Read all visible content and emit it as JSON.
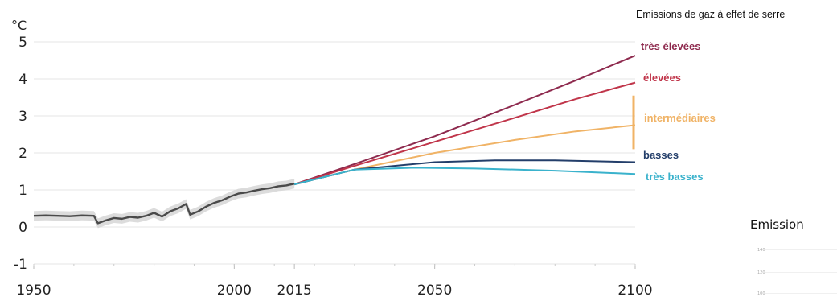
{
  "chart_data": [
    {
      "type": "line",
      "unit_label": "°C",
      "x_ticks": [
        1950,
        2000,
        2015,
        2050,
        2100
      ],
      "y_ticks": [
        5,
        4,
        3,
        2,
        1,
        0,
        -1
      ],
      "xlim": [
        1950,
        2100
      ],
      "ylim": [
        -1,
        5
      ],
      "grid": true,
      "legend_title": "Emissions de gaz à effet de serre",
      "legend_position": "right",
      "observed": {
        "x": [
          1950,
          1953,
          1956,
          1959,
          1962,
          1965,
          1966,
          1968,
          1970,
          1972,
          1974,
          1976,
          1978,
          1980,
          1982,
          1984,
          1986,
          1988,
          1989,
          1991,
          1993,
          1995,
          1997,
          1999,
          2001,
          2003,
          2005,
          2007,
          2009,
          2011,
          2013,
          2015
        ],
        "y": [
          0.3,
          0.31,
          0.3,
          0.29,
          0.31,
          0.3,
          0.1,
          0.18,
          0.24,
          0.22,
          0.27,
          0.25,
          0.3,
          0.38,
          0.28,
          0.42,
          0.5,
          0.62,
          0.33,
          0.42,
          0.55,
          0.65,
          0.72,
          0.82,
          0.9,
          0.93,
          0.98,
          1.02,
          1.05,
          1.1,
          1.12,
          1.17
        ],
        "color": "#4a4a4a",
        "band_color": "#d6d6d6"
      },
      "series": [
        {
          "name": "très élevées",
          "color": "#8e2a4e",
          "x": [
            2015,
            2030,
            2050,
            2070,
            2085,
            2100
          ],
          "y": [
            1.15,
            1.7,
            2.45,
            3.3,
            3.95,
            4.63
          ]
        },
        {
          "name": "élevées",
          "color": "#c0354a",
          "x": [
            2015,
            2030,
            2050,
            2070,
            2085,
            2100
          ],
          "y": [
            1.15,
            1.65,
            2.3,
            2.95,
            3.45,
            3.9
          ]
        },
        {
          "name": "intermédiaires",
          "color": "#f0b366",
          "x": [
            2015,
            2030,
            2050,
            2070,
            2085,
            2100
          ],
          "y": [
            1.15,
            1.55,
            2.0,
            2.35,
            2.58,
            2.75
          ]
        },
        {
          "name": "basses",
          "color": "#233e6a",
          "x": [
            2015,
            2030,
            2050,
            2065,
            2080,
            2100
          ],
          "y": [
            1.15,
            1.55,
            1.75,
            1.8,
            1.8,
            1.75
          ]
        },
        {
          "name": "très basses",
          "color": "#3ab2cc",
          "x": [
            2015,
            2030,
            2045,
            2060,
            2080,
            2100
          ],
          "y": [
            1.15,
            1.55,
            1.6,
            1.58,
            1.52,
            1.43
          ]
        }
      ],
      "range_bar": {
        "x": 2100,
        "y_min": 2.1,
        "y_max": 3.55,
        "color": "#f0b366"
      }
    },
    {
      "type": "line",
      "title": "Emission",
      "partial": true,
      "y_ticks": [
        "140",
        "120",
        "100"
      ]
    }
  ]
}
